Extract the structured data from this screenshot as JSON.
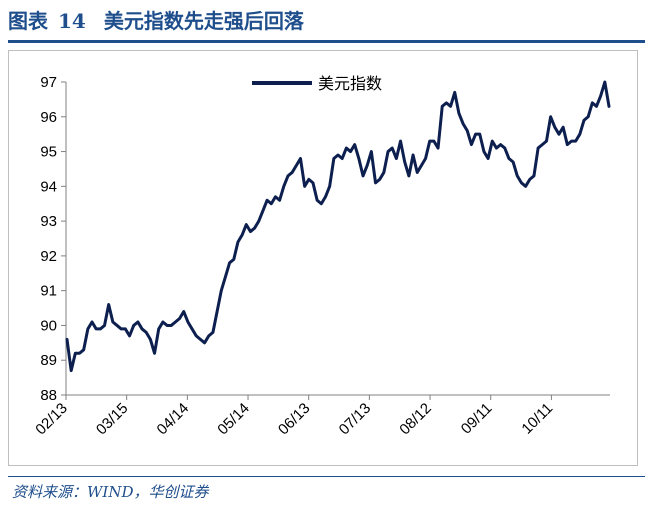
{
  "figure": {
    "label": "图表",
    "number": "14",
    "title": "美元指数先走强后回落",
    "source": "资料来源：WIND，华创证券"
  },
  "chart_data": {
    "type": "line",
    "title": "",
    "xlabel": "",
    "ylabel": "",
    "ylim": [
      88,
      97
    ],
    "yticks": [
      88,
      89,
      90,
      91,
      92,
      93,
      94,
      95,
      96,
      97
    ],
    "xticks": [
      "02/13",
      "03/15",
      "04/14",
      "05/14",
      "06/13",
      "07/13",
      "08/12",
      "09/11",
      "10/11"
    ],
    "grid": false,
    "legend_position": "top",
    "line_color": "#0d1f4f",
    "series": [
      {
        "name": "美元指数",
        "x_start": "02/13",
        "x_end": "10/31",
        "values": [
          89.6,
          88.7,
          89.2,
          89.2,
          89.3,
          89.9,
          90.1,
          89.9,
          89.9,
          90.0,
          90.6,
          90.1,
          90.0,
          89.9,
          89.9,
          89.7,
          90.0,
          90.1,
          89.9,
          89.8,
          89.6,
          89.2,
          89.9,
          90.1,
          90.0,
          90.0,
          90.1,
          90.2,
          90.4,
          90.1,
          89.9,
          89.7,
          89.6,
          89.5,
          89.7,
          89.8,
          90.4,
          91.0,
          91.4,
          91.8,
          91.9,
          92.4,
          92.6,
          92.9,
          92.7,
          92.8,
          93.0,
          93.3,
          93.6,
          93.5,
          93.7,
          93.6,
          94.0,
          94.3,
          94.4,
          94.6,
          94.8,
          94.0,
          94.2,
          94.1,
          93.6,
          93.5,
          93.7,
          94.0,
          94.8,
          94.9,
          94.8,
          95.1,
          95.0,
          95.2,
          94.8,
          94.3,
          94.6,
          95.0,
          94.1,
          94.2,
          94.4,
          95.0,
          95.1,
          94.8,
          95.3,
          94.7,
          94.3,
          94.9,
          94.4,
          94.6,
          94.8,
          95.3,
          95.3,
          95.1,
          96.3,
          96.4,
          96.3,
          96.7,
          96.1,
          95.8,
          95.6,
          95.2,
          95.5,
          95.5,
          95.0,
          94.8,
          95.3,
          95.1,
          95.2,
          95.1,
          94.8,
          94.7,
          94.3,
          94.1,
          94.0,
          94.2,
          94.3,
          95.1,
          95.2,
          95.3,
          96.0,
          95.7,
          95.5,
          95.7,
          95.2,
          95.3,
          95.3,
          95.5,
          95.9,
          96.0,
          96.4,
          96.3,
          96.6,
          97.0,
          96.3
        ]
      }
    ]
  }
}
